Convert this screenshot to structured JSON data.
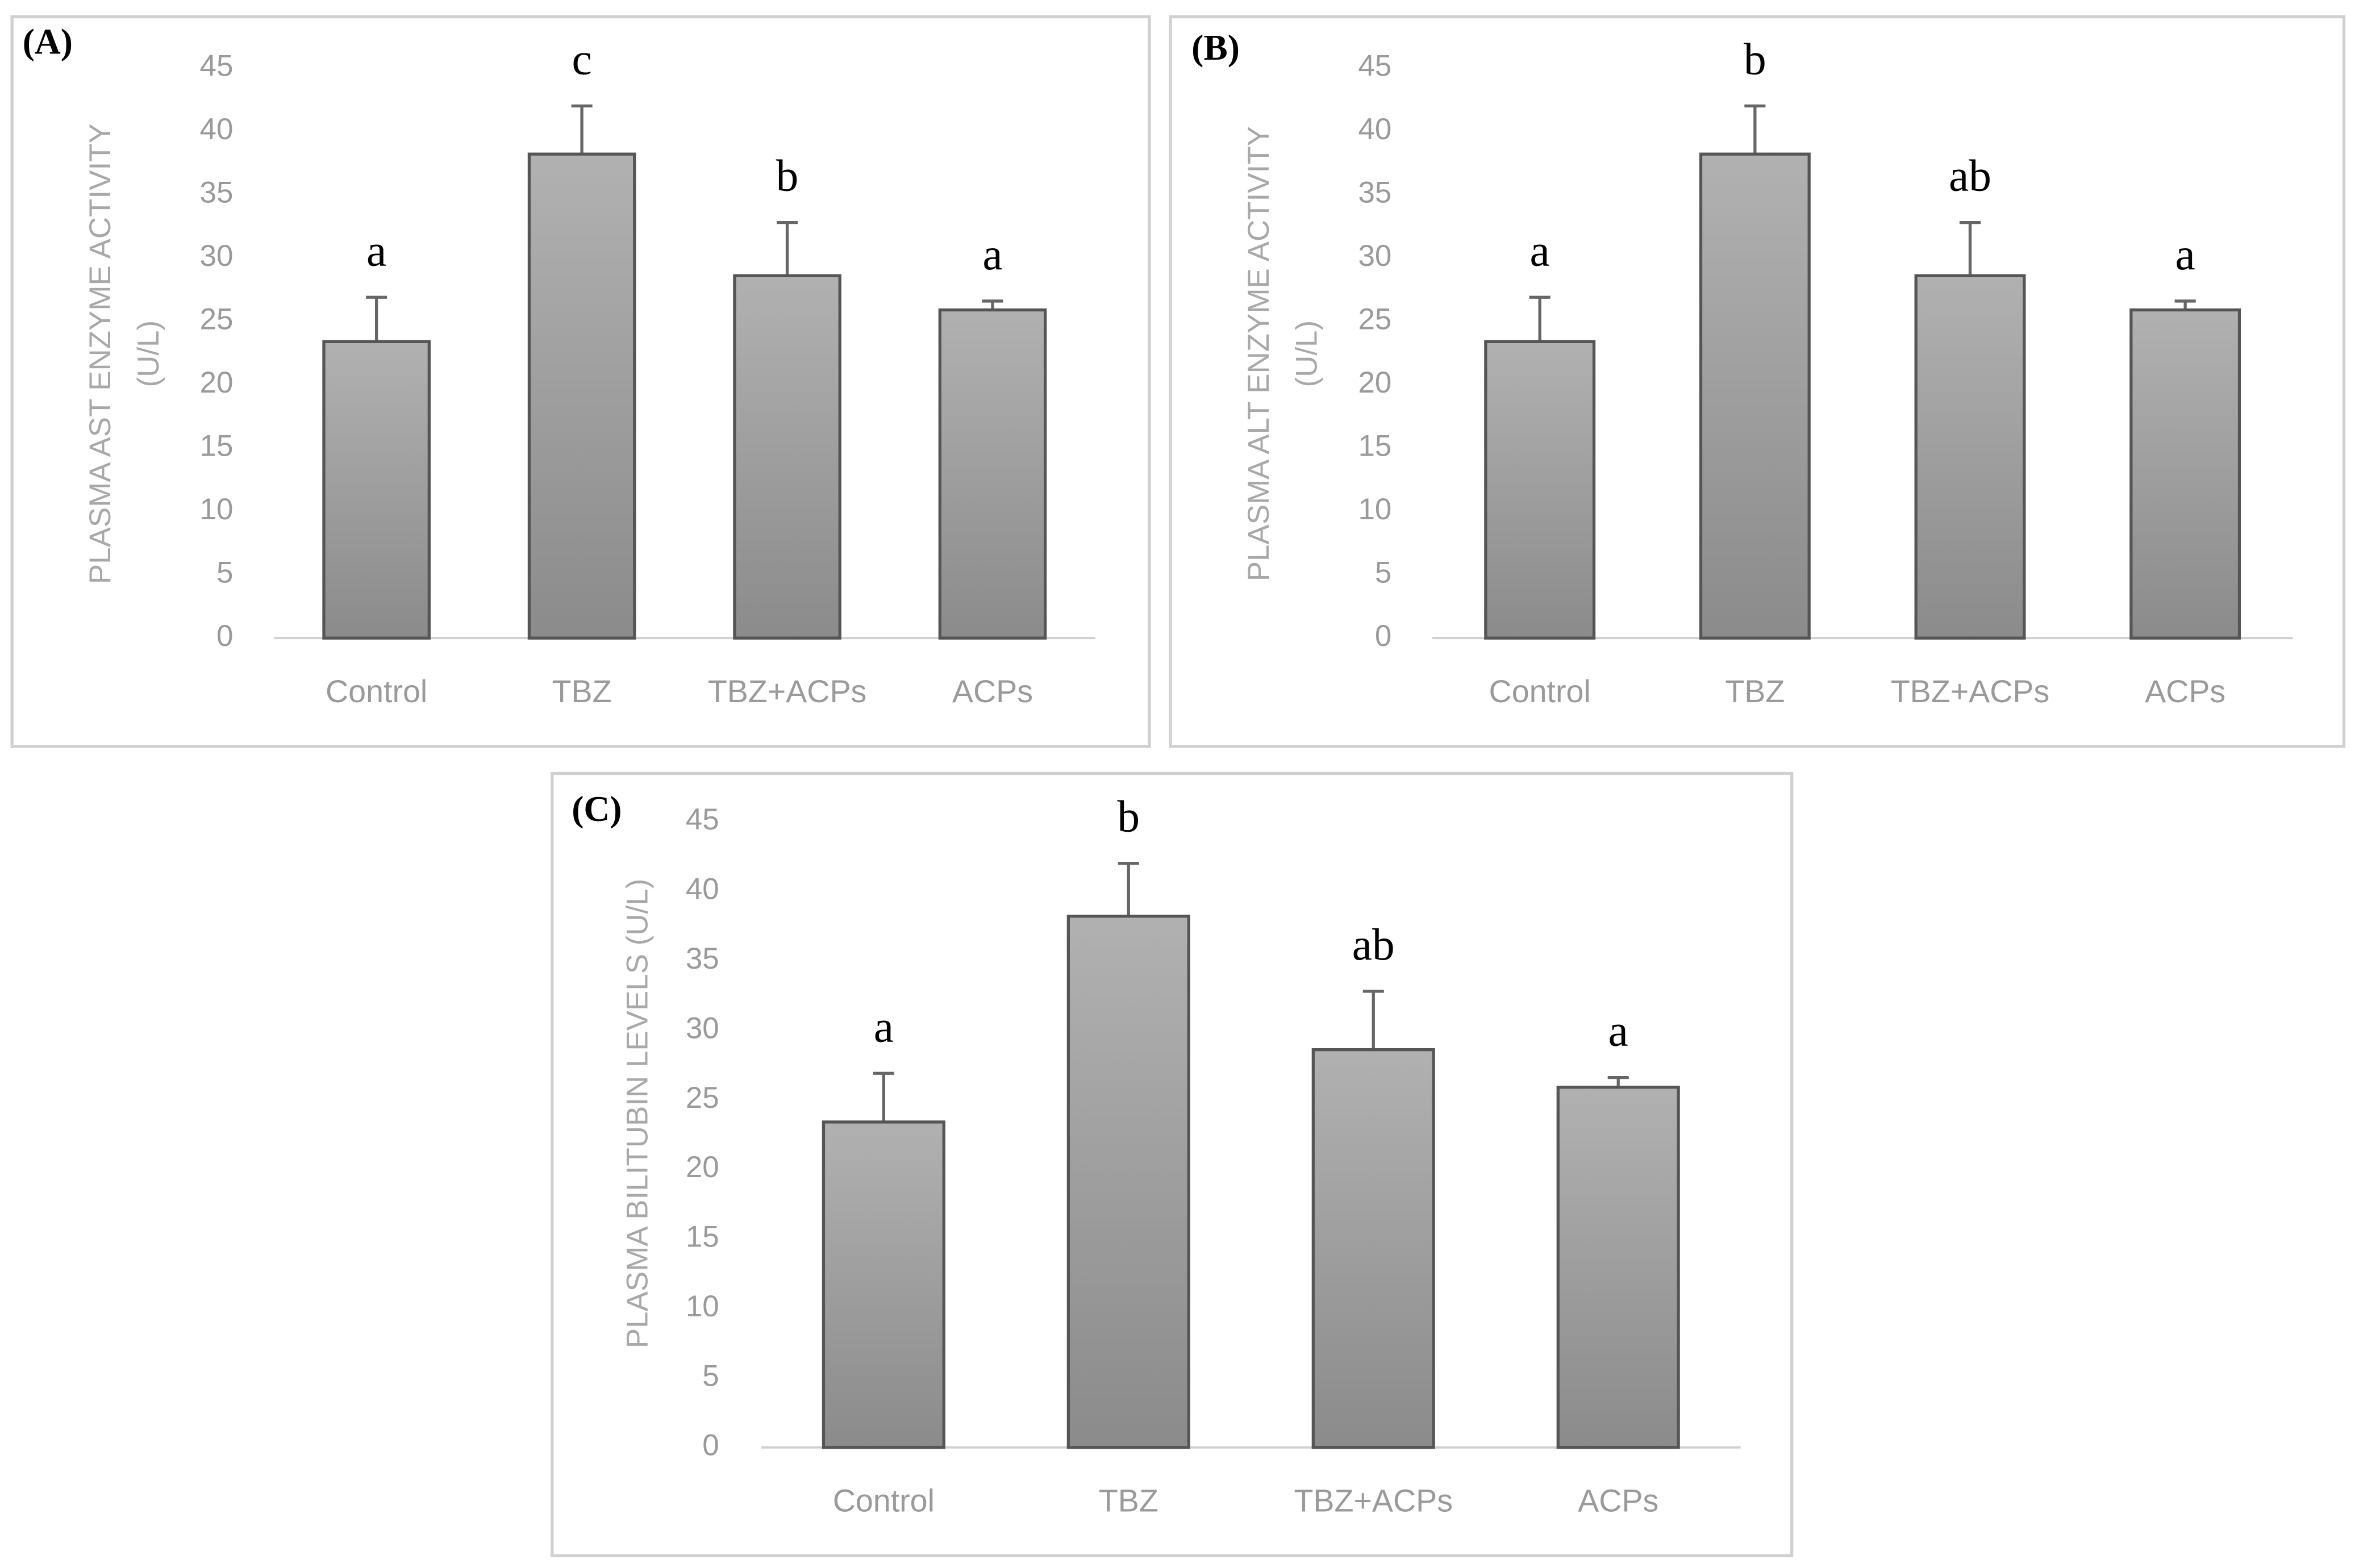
{
  "chart_data": [
    {
      "type": "bar",
      "panel": "(A)",
      "ylabel_lines": [
        "PLASMA AST ENZYME ACTIVITY",
        "(U/L)"
      ],
      "categories": [
        "Control",
        "TBZ",
        "TBZ+ACPs",
        "ACPs"
      ],
      "values": [
        23.4,
        38.2,
        28.6,
        25.9
      ],
      "errors": [
        3.5,
        3.8,
        4.2,
        0.7
      ],
      "annotations": [
        "a",
        "c",
        "b",
        "a"
      ],
      "color": "#9e9e9e",
      "ylim": [
        0,
        45
      ],
      "yticks": [
        0,
        5,
        10,
        15,
        20,
        25,
        30,
        35,
        40,
        45
      ],
      "grid": false
    },
    {
      "type": "bar",
      "panel": "(B)",
      "ylabel_lines": [
        "PLASMA ALT ENZYME ACTIVITY",
        "(U/L)"
      ],
      "categories": [
        "Control",
        "TBZ",
        "TBZ+ACPs",
        "ACPs"
      ],
      "values": [
        23.4,
        38.2,
        28.6,
        25.9
      ],
      "errors": [
        3.5,
        3.8,
        4.2,
        0.7
      ],
      "annotations": [
        "a",
        "b",
        "ab",
        "a"
      ],
      "color": "#9e9e9e",
      "ylim": [
        0,
        45
      ],
      "yticks": [
        0,
        5,
        10,
        15,
        20,
        25,
        30,
        35,
        40,
        45
      ],
      "grid": false
    },
    {
      "type": "bar",
      "panel": "(C)",
      "ylabel_lines": [
        "PLASMA BILITUBIN LEVELS (U/L)"
      ],
      "categories": [
        "Control",
        "TBZ",
        "TBZ+ACPs",
        "ACPs"
      ],
      "values": [
        23.4,
        38.2,
        28.6,
        25.9
      ],
      "errors": [
        3.5,
        3.8,
        4.2,
        0.7
      ],
      "annotations": [
        "a",
        "b",
        "ab",
        "a"
      ],
      "color": "#9e9e9e",
      "ylim": [
        0,
        45
      ],
      "yticks": [
        0,
        5,
        10,
        15,
        20,
        25,
        30,
        35,
        40,
        45
      ],
      "grid": false
    }
  ]
}
